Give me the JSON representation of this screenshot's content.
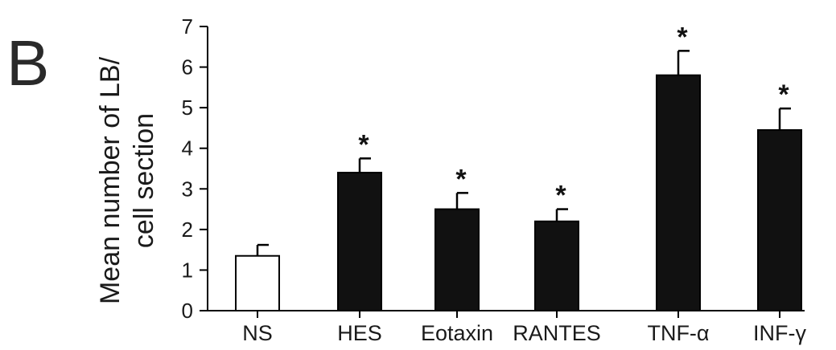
{
  "panel_label": "B",
  "chart_data": {
    "type": "bar",
    "categories": [
      "NS",
      "HES",
      "Eotaxin",
      "RANTES",
      "TNF-α",
      "INF-γ"
    ],
    "values": [
      1.35,
      3.4,
      2.5,
      2.2,
      5.8,
      4.45
    ],
    "errors": [
      0.27,
      0.35,
      0.4,
      0.3,
      0.6,
      0.53
    ],
    "significance": [
      "",
      "*",
      "*",
      "*",
      "*",
      "*"
    ],
    "bar_colors": [
      "#ffffff",
      "#111111",
      "#111111",
      "#111111",
      "#111111",
      "#111111"
    ],
    "ylabel_lines": [
      "Mean number of LB/",
      "cell section"
    ],
    "xlabel": "",
    "ylim": [
      0,
      7
    ],
    "yticks": [
      0,
      1,
      2,
      3,
      4,
      5,
      6,
      7
    ],
    "grid": false,
    "legend": "none"
  }
}
